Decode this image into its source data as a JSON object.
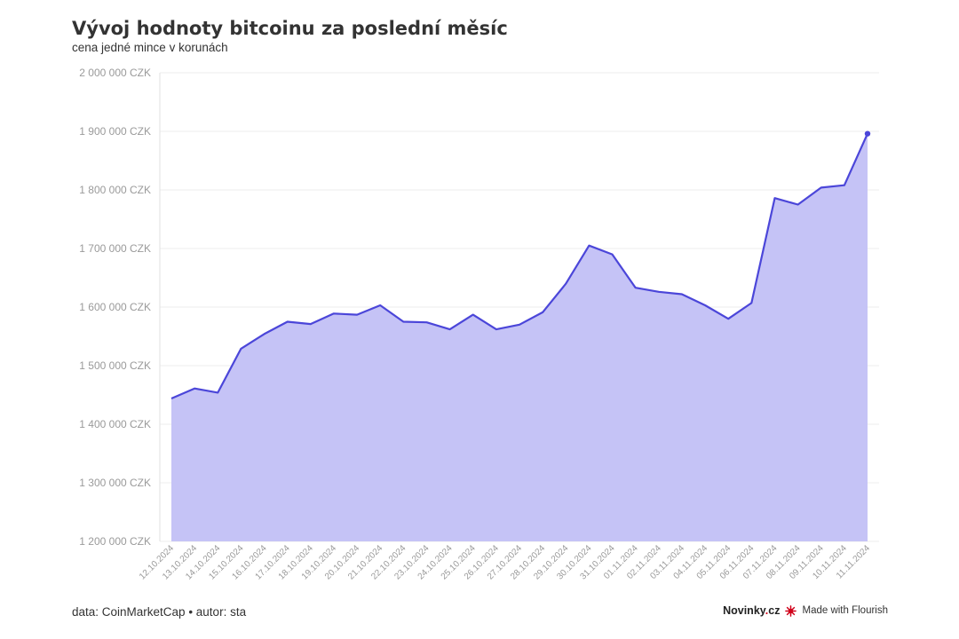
{
  "chart_data": {
    "type": "area",
    "title": "Vývoj hodnoty bitcoinu za poslední měsíc",
    "subtitle": "cena jedné mince v korunách",
    "y_tick_labels": [
      "1 200 000 CZK",
      "1 300 000 CZK",
      "1 400 000 CZK",
      "1 500 000 CZK",
      "1 600 000 CZK",
      "1 700 000 CZK",
      "1 800 000 CZK",
      "1 900 000 CZK",
      "2 000 000 CZK"
    ],
    "y_ticks": [
      1200000,
      1300000,
      1400000,
      1500000,
      1600000,
      1700000,
      1800000,
      1900000,
      2000000
    ],
    "ylim": [
      1200000,
      2000000
    ],
    "grid": true,
    "categories": [
      "12.10.2024",
      "13.10.2024",
      "14.10.2024",
      "15.10.2024",
      "16.10.2024",
      "17.10.2024",
      "18.10.2024",
      "19.10.2024",
      "20.10.2024",
      "21.10.2024",
      "22.10.2024",
      "23.10.2024",
      "24.10.2024",
      "25.10.2024",
      "26.10.2024",
      "27.10.2024",
      "28.10.2024",
      "29.10.2024",
      "30.10.2024",
      "31.10.2024",
      "01.11.2024",
      "02.11.2024",
      "03.11.2024",
      "04.11.2024",
      "05.11.2024",
      "06.11.2024",
      "07.11.2024",
      "08.11.2024",
      "09.11.2024",
      "10.11.2024",
      "11.11.2024"
    ],
    "series": [
      {
        "values": [
          1444000,
          1461000,
          1454000,
          1529000,
          1554000,
          1575000,
          1571000,
          1589000,
          1587000,
          1603000,
          1575000,
          1574000,
          1562000,
          1587000,
          1562000,
          1570000,
          1591000,
          1640000,
          1705000,
          1690000,
          1633000,
          1626000,
          1622000,
          1603000,
          1580000,
          1607000,
          1786000,
          1775000,
          1804000,
          1808000,
          1896000
        ],
        "line_color": "#4b46d9",
        "fill_color": "#c5c3f6"
      }
    ],
    "highlight_last_point": true
  },
  "footer": {
    "source": "data: CoinMarketCap • autor: sta",
    "brand_name": "Novinky",
    "brand_dot": ".",
    "brand_tld": "cz",
    "flourish": "Made with Flourish"
  }
}
